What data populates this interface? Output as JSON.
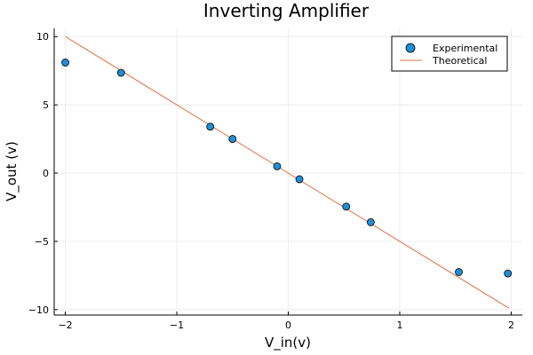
{
  "chart_data": {
    "type": "scatter",
    "title": "Inverting Amplifier",
    "xlabel": "V_in(v)",
    "ylabel": "V_out (v)",
    "xlim": [
      -2.1,
      2.1
    ],
    "ylim": [
      -10.4,
      10.6
    ],
    "xticks": [
      -2,
      -1,
      0,
      1,
      2
    ],
    "xtick_labels": [
      "−2",
      "−1",
      "0",
      "1",
      "2"
    ],
    "yticks": [
      -10,
      -5,
      0,
      5,
      10
    ],
    "ytick_labels": [
      "−10",
      "−5",
      "0",
      "5",
      "10"
    ],
    "grid": true,
    "legend_position": "top-right",
    "series": [
      {
        "name": "Experimental",
        "kind": "scatter",
        "color": "#1f8fd6",
        "x": [
          -2.0,
          -1.5,
          -0.7,
          -0.5,
          -0.1,
          0.1,
          0.52,
          0.74,
          1.53,
          1.97
        ],
        "y": [
          8.1,
          7.35,
          3.4,
          2.5,
          0.5,
          -0.45,
          -2.45,
          -3.6,
          -7.25,
          -7.35
        ]
      },
      {
        "name": "Theoretical",
        "kind": "line",
        "color": "#e26f46",
        "x": [
          -2.0,
          1.98
        ],
        "y": [
          10.0,
          -9.9
        ]
      }
    ]
  }
}
